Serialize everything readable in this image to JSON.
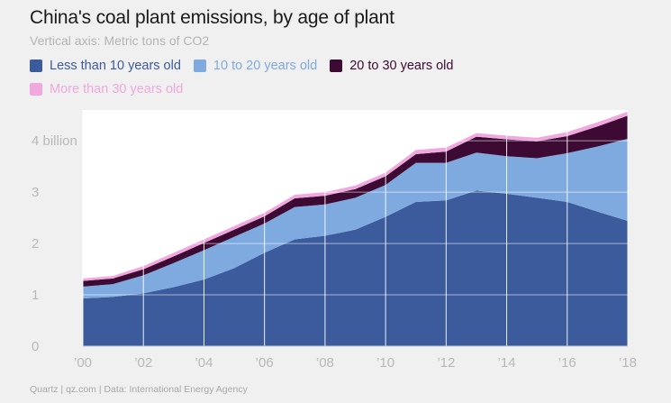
{
  "chart_data": {
    "type": "area",
    "stacked": true,
    "title": "China's coal plant emissions, by age of plant",
    "subtitle": "Vertical axis: Metric tons of CO2",
    "source": "Quartz | qz.com | Data: International Energy Agency",
    "x": [
      2000,
      2001,
      2002,
      2003,
      2004,
      2005,
      2006,
      2007,
      2008,
      2009,
      2010,
      2011,
      2012,
      2013,
      2014,
      2015,
      2016,
      2017,
      2018
    ],
    "x_tick_values": [
      2000,
      2002,
      2004,
      2006,
      2008,
      2010,
      2012,
      2014,
      2016,
      2018
    ],
    "x_tick_labels": [
      "’00",
      "’02",
      "’04",
      "’06",
      "’08",
      "’10",
      "’12",
      "’14",
      "’16",
      "’18"
    ],
    "y_tick_values": [
      0,
      1,
      2,
      3,
      4
    ],
    "y_tick_labels": [
      "0",
      "1",
      "2",
      "3",
      "4 billion"
    ],
    "ylim": [
      0,
      4.6
    ],
    "xlim": [
      2000,
      2018
    ],
    "legend_position": "top-left",
    "grid": true,
    "series": [
      {
        "name": "Less than 10 years old",
        "color": "#3b5b9c",
        "values": [
          0.93,
          0.96,
          1.03,
          1.15,
          1.3,
          1.52,
          1.82,
          2.08,
          2.15,
          2.27,
          2.52,
          2.81,
          2.84,
          3.03,
          2.97,
          2.89,
          2.81,
          2.62,
          2.44
        ]
      },
      {
        "name": "10 to 20 years old",
        "color": "#7eaadf",
        "values": [
          0.23,
          0.25,
          0.35,
          0.47,
          0.57,
          0.61,
          0.57,
          0.63,
          0.61,
          0.62,
          0.62,
          0.76,
          0.73,
          0.74,
          0.73,
          0.77,
          0.95,
          1.27,
          1.6
        ]
      },
      {
        "name": "20 to 30 years old",
        "color": "#3c0a33",
        "values": [
          0.11,
          0.11,
          0.12,
          0.13,
          0.14,
          0.14,
          0.14,
          0.17,
          0.17,
          0.17,
          0.17,
          0.17,
          0.22,
          0.31,
          0.33,
          0.33,
          0.33,
          0.39,
          0.45
        ]
      },
      {
        "name": "More than 30 years old",
        "color": "#f0a8de",
        "values": [
          0.05,
          0.05,
          0.06,
          0.07,
          0.07,
          0.07,
          0.07,
          0.07,
          0.07,
          0.07,
          0.07,
          0.08,
          0.08,
          0.07,
          0.07,
          0.07,
          0.08,
          0.08,
          0.08
        ]
      }
    ]
  }
}
